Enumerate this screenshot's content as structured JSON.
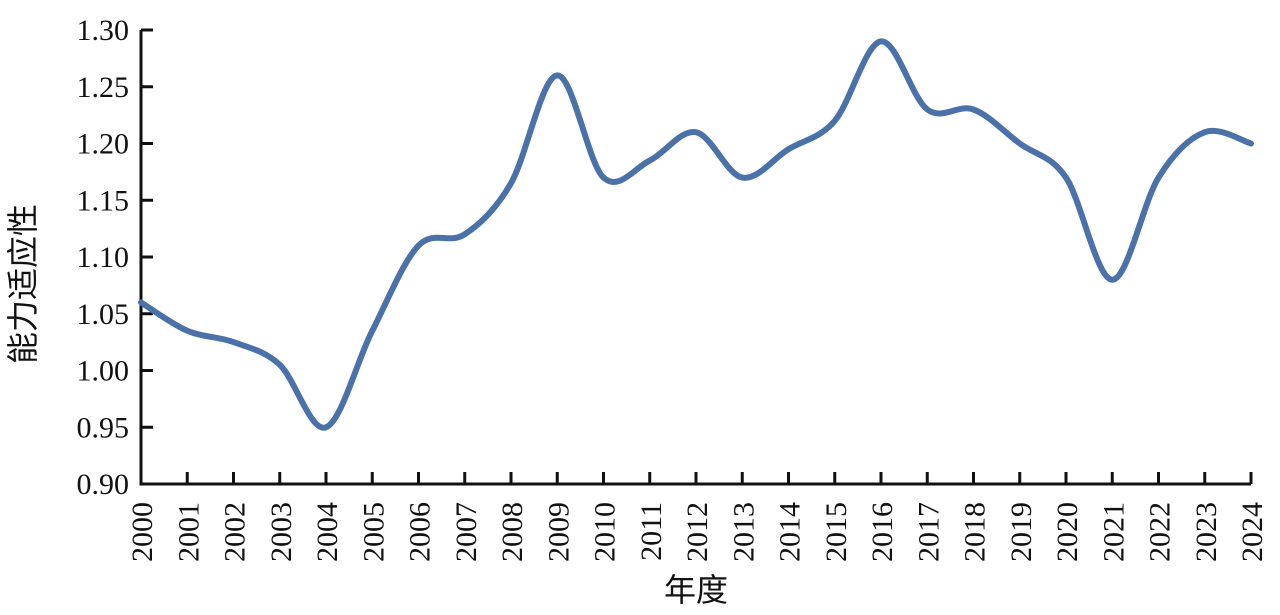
{
  "figure": {
    "background_color": "#ffffff"
  },
  "chart_data": {
    "type": "line",
    "title": "",
    "xlabel": "年度",
    "ylabel": "能力适应性",
    "x": [
      2000,
      2001,
      2002,
      2003,
      2004,
      2005,
      2006,
      2007,
      2008,
      2009,
      2010,
      2011,
      2012,
      2013,
      2014,
      2015,
      2016,
      2017,
      2018,
      2019,
      2020,
      2021,
      2022,
      2023,
      2024
    ],
    "values": [
      1.06,
      1.035,
      1.025,
      1.005,
      0.95,
      1.035,
      1.11,
      1.12,
      1.165,
      1.26,
      1.17,
      1.185,
      1.21,
      1.17,
      1.195,
      1.22,
      1.29,
      1.23,
      1.23,
      1.2,
      1.17,
      1.08,
      1.17,
      1.21,
      1.2
    ],
    "xlim": [
      2000,
      2024
    ],
    "ylim": [
      0.9,
      1.3
    ],
    "xtick_labels": [
      "2000",
      "2001",
      "2002",
      "2003",
      "2004",
      "2005",
      "2006",
      "2007",
      "2008",
      "2009",
      "2010",
      "2011",
      "2012",
      "2013",
      "2014",
      "2015",
      "2016",
      "2017",
      "2018",
      "2019",
      "2020",
      "2021",
      "2022",
      "2023",
      "2024"
    ],
    "yticks": [
      0.9,
      0.95,
      1.0,
      1.05,
      1.1,
      1.15,
      1.2,
      1.25,
      1.3
    ],
    "ytick_labels": [
      "0.90",
      "0.95",
      "1.00",
      "1.05",
      "1.10",
      "1.15",
      "1.20",
      "1.25",
      "1.30"
    ],
    "grid": false,
    "legend": "none",
    "line_style": "smooth-spline",
    "line_color": "#4a72a8",
    "axis_color": "#111111"
  }
}
